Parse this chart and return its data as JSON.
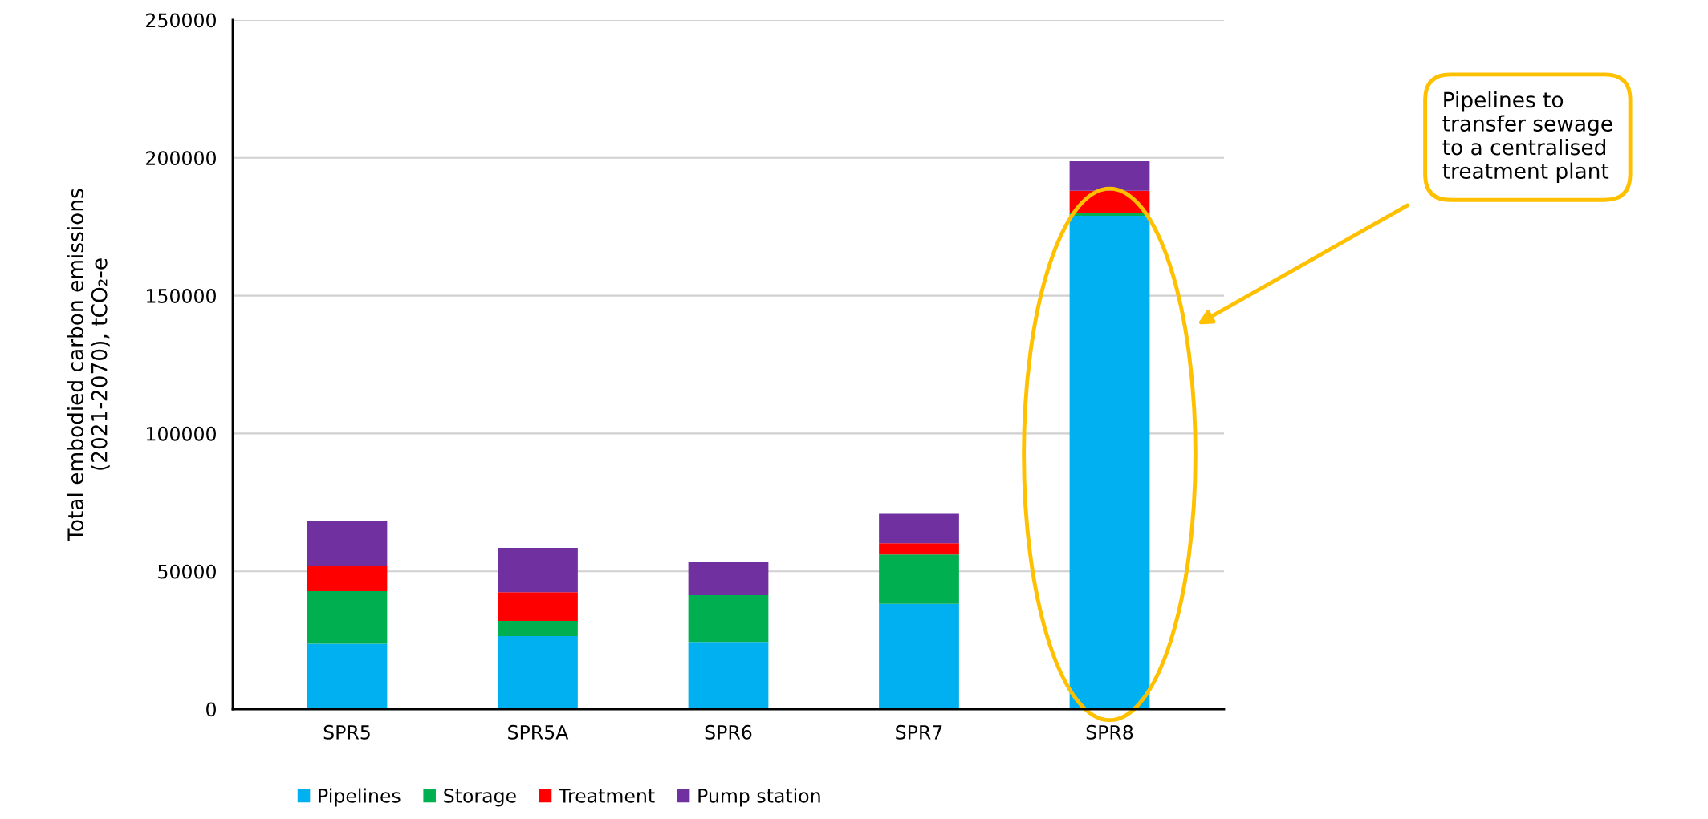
{
  "chart_data": {
    "type": "bar",
    "stacked": true,
    "ylabel": "Total embodied carbon emissions\n(2021-2070), tCO₂-e",
    "categories": [
      "SPR5",
      "SPR5A",
      "SPR6",
      "SPR7",
      "SPR8"
    ],
    "series": [
      {
        "name": "Pipelines",
        "color": "#00b0f0",
        "values": [
          23700,
          26500,
          24400,
          38200,
          179000
        ]
      },
      {
        "name": "Storage",
        "color": "#00b050",
        "values": [
          19100,
          5500,
          16900,
          17900,
          1000
        ]
      },
      {
        "name": "Treatment",
        "color": "#ff0000",
        "values": [
          9200,
          10400,
          0,
          4100,
          8100
        ]
      },
      {
        "name": "Pump station",
        "color": "#7030a0",
        "values": [
          16300,
          16100,
          12200,
          10700,
          10700
        ]
      }
    ],
    "ylim": [
      0,
      250000
    ],
    "yticks": [
      0,
      50000,
      100000,
      150000,
      200000,
      250000
    ],
    "grid": "y",
    "legend": "bottom",
    "annotations": [
      "Pipelines to\ntransfer sewage\nto a centralised\ntreatment plant"
    ]
  }
}
